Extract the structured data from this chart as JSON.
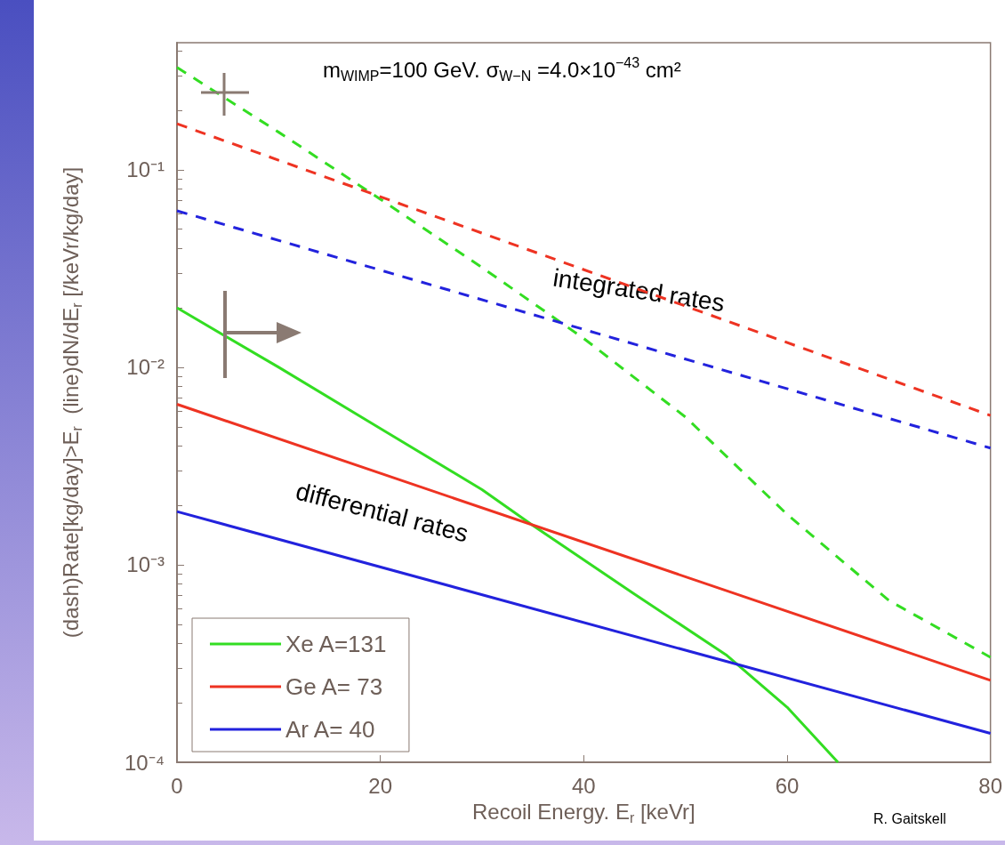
{
  "chart_data": {
    "type": "line",
    "xlabel": "Recoil Energy. E$_{r}$ [keVr]",
    "ylabel": "(dash)Rate[kg/day]>E$_{r}$  (line)dN/dE$_{r}$ [/keVr/kg/day]",
    "annotations": [
      "m$_{WIMP}$=100 GeV. σ$_{W−N}$ =4.0×10$^{−43}$ cm²",
      "integrated rates",
      "differential rates",
      "R. Gaitskell"
    ],
    "series": [
      {
        "name": "Xe A=131",
        "color": "#33dd22",
        "line_style": "solid",
        "x": [
          0,
          10,
          20,
          30,
          35,
          45,
          54,
          60,
          65
        ],
        "values": [
          0.02,
          0.01,
          0.0049,
          0.0024,
          0.00158,
          0.00071,
          0.00035,
          0.00019,
          0.0001
        ]
      },
      {
        "name": "Ge A= 73",
        "color": "#ee3322",
        "line_style": "solid",
        "x": [
          0,
          80
        ],
        "values": [
          0.0065,
          0.00026
        ]
      },
      {
        "name": "Ar A= 40",
        "color": "#2222dd",
        "line_style": "solid",
        "x": [
          0,
          80
        ],
        "values": [
          0.00186,
          0.00014
        ]
      },
      {
        "color": "#33dd22",
        "line_style": "dashed",
        "x": [
          0,
          10,
          20,
          30,
          40,
          50,
          60,
          70,
          80
        ],
        "values": [
          0.33,
          0.155,
          0.071,
          0.032,
          0.014,
          0.0056,
          0.0018,
          0.00066,
          0.00034
        ]
      },
      {
        "color": "#ee3322",
        "line_style": "dashed",
        "x": [
          0,
          80
        ],
        "values": [
          0.171,
          0.0057
        ]
      },
      {
        "color": "#2222dd",
        "line_style": "dashed",
        "x": [
          0,
          80
        ],
        "values": [
          0.062,
          0.0039
        ]
      }
    ],
    "log": "y",
    "xlim": [
      0,
      80
    ],
    "xticks": [
      0,
      20,
      40,
      60,
      80
    ],
    "ylim": [
      0.0001,
      0.44
    ],
    "yticks": [
      {
        "value": 0.0001,
        "label": "10⁻⁴"
      },
      {
        "value": 0.001,
        "label": "10⁻³"
      },
      {
        "value": 0.01,
        "label": "10⁻²"
      },
      {
        "value": 0.1,
        "label": "10⁻¹"
      }
    ],
    "grid": false,
    "legend": "bottom left",
    "marker": "none"
  }
}
